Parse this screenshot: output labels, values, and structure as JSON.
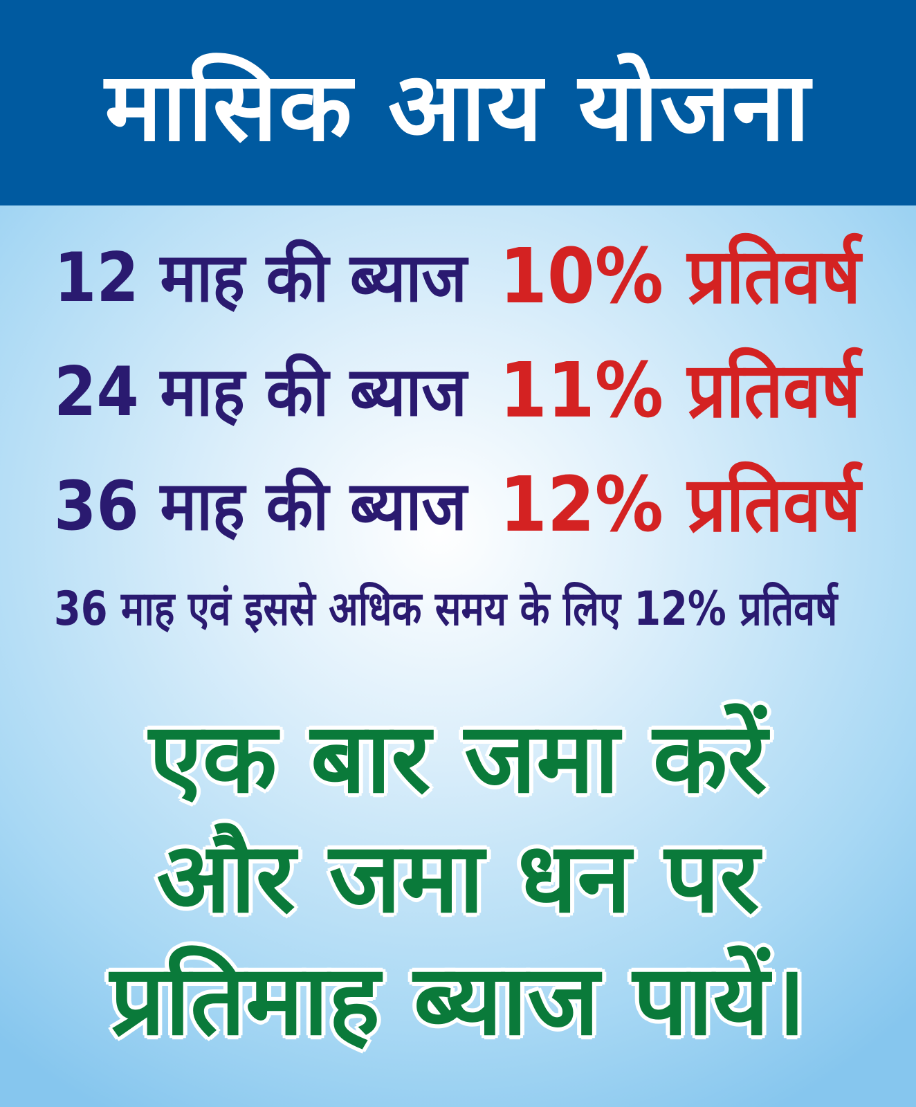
{
  "header": {
    "title": "मासिक आय योजना"
  },
  "rates": [
    {
      "term": "12 माह की ब्याज",
      "rate": "10% प्रतिवर्ष"
    },
    {
      "term": "24 माह की ब्याज",
      "rate": "11% प्रतिवर्ष"
    },
    {
      "term": "36 माह की ब्याज",
      "rate": "12% प्रतिवर्ष"
    }
  ],
  "note": "36 माह एवं इससे अधिक समय के लिए 12% प्रतिवर्ष",
  "slogan": [
    "एक बार जमा करें",
    "और जमा धन पर",
    "प्रतिमाह ब्याज पायें।"
  ],
  "colors": {
    "header": "#005aa0",
    "term_text": "#2a1a70",
    "rate_text": "#d42222",
    "slogan_text": "#0a7a3a"
  }
}
